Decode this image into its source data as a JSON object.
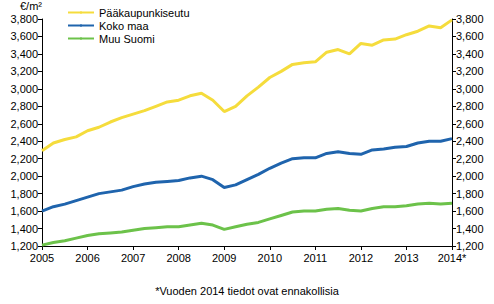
{
  "chart_data": {
    "type": "line",
    "y_label": "€/m²",
    "annotation": "*Vuoden 2014 tiedot ovat ennakollisia",
    "categories": [
      "2005",
      null,
      null,
      null,
      "2006",
      null,
      null,
      null,
      "2007",
      null,
      null,
      null,
      "2008",
      null,
      null,
      null,
      "2009",
      null,
      null,
      null,
      "2010",
      null,
      null,
      null,
      "2011",
      null,
      null,
      null,
      "2012",
      null,
      null,
      null,
      "2013",
      null,
      null,
      null,
      "2014*"
    ],
    "series": [
      {
        "name": "Pääkaupunkiseutu",
        "color": "#f5dc3c",
        "values": [
          2290,
          2380,
          2420,
          2450,
          2520,
          2560,
          2620,
          2670,
          2710,
          2750,
          2800,
          2850,
          2870,
          2920,
          2950,
          2870,
          2740,
          2800,
          2920,
          3020,
          3130,
          3200,
          3280,
          3300,
          3310,
          3420,
          3450,
          3400,
          3520,
          3500,
          3560,
          3570,
          3620,
          3660,
          3720,
          3700,
          3790
        ]
      },
      {
        "name": "Koko maa",
        "color": "#1f64ad",
        "values": [
          1600,
          1650,
          1680,
          1720,
          1760,
          1800,
          1820,
          1840,
          1880,
          1910,
          1930,
          1940,
          1950,
          1980,
          2000,
          1960,
          1870,
          1900,
          1960,
          2020,
          2090,
          2150,
          2200,
          2210,
          2210,
          2260,
          2280,
          2260,
          2250,
          2300,
          2310,
          2330,
          2340,
          2380,
          2400,
          2400,
          2430
        ]
      },
      {
        "name": "Muu Suomi",
        "color": "#6cc24a",
        "values": [
          1210,
          1240,
          1260,
          1290,
          1320,
          1340,
          1350,
          1360,
          1380,
          1400,
          1410,
          1420,
          1420,
          1440,
          1460,
          1440,
          1390,
          1420,
          1450,
          1470,
          1510,
          1550,
          1590,
          1600,
          1600,
          1620,
          1630,
          1610,
          1600,
          1630,
          1650,
          1650,
          1660,
          1680,
          1690,
          1680,
          1690
        ]
      }
    ],
    "ylim": [
      1200,
      3800
    ],
    "yticks": [
      1200,
      1400,
      1600,
      1800,
      2000,
      2200,
      2400,
      2600,
      2800,
      3000,
      3200,
      3400,
      3600,
      3800
    ],
    "y2lim": [
      1200,
      3800
    ],
    "y2ticks": [
      1200,
      1400,
      1600,
      1800,
      2000,
      2200,
      2400,
      2600,
      2800,
      3000,
      3200,
      3400,
      3600,
      3800
    ],
    "legend": "upper left",
    "grid": false
  }
}
